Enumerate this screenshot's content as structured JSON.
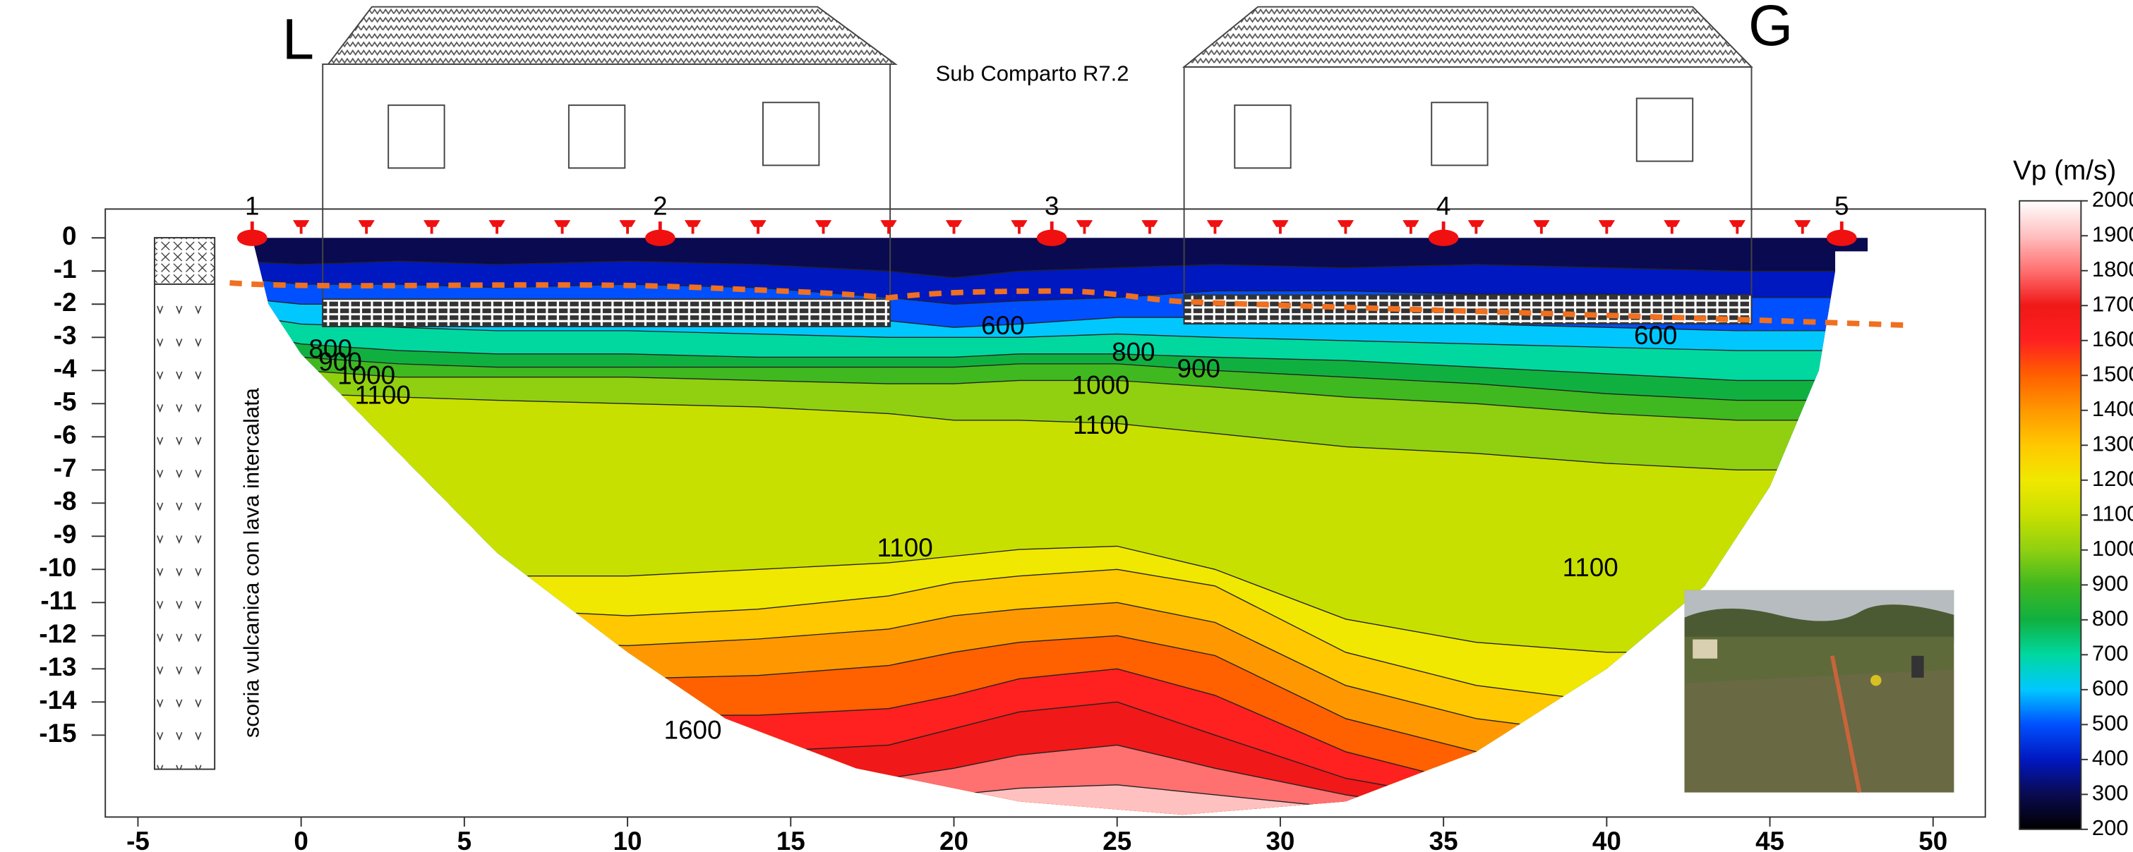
{
  "chart_data": {
    "type": "contour",
    "title": "Sub Comparto R7.2",
    "xlim": [
      -6,
      51.6
    ],
    "xticks": [
      -5,
      0,
      5,
      10,
      15,
      20,
      25,
      30,
      35,
      40,
      45,
      50
    ],
    "ylim": [
      -17.47,
      0.87
    ],
    "yticks": [
      0,
      -1,
      -2,
      -3,
      -4,
      -5,
      -6,
      -7,
      -8,
      -9,
      -10,
      -11,
      -12,
      -13,
      -14,
      -15
    ],
    "colorbar": {
      "label": "Vp (m/s)",
      "lim": [
        200,
        2000
      ],
      "ticks": [
        200,
        300,
        400,
        500,
        600,
        700,
        800,
        900,
        1000,
        1100,
        1200,
        1300,
        1400,
        1500,
        1600,
        1700,
        1800,
        1900,
        2000
      ],
      "colors": [
        "#000000",
        "#0a0a50",
        "#0018c0",
        "#0050ff",
        "#00c8ff",
        "#00d8a0",
        "#10b040",
        "#40b820",
        "#90d010",
        "#c8e000",
        "#f0e800",
        "#ffc800",
        "#ff9800",
        "#ff6000",
        "#ff2020",
        "#f01818",
        "#ff7070",
        "#ffc0c0",
        "#ffffff"
      ]
    },
    "contour_x": [
      -2,
      0,
      3,
      6,
      10,
      14,
      18,
      20,
      22,
      25,
      28,
      32,
      36,
      40,
      44,
      48
    ],
    "contours": [
      {
        "value": 400,
        "y": [
          -0.7,
          -0.8,
          -0.7,
          -0.8,
          -0.7,
          -0.8,
          -1,
          -1.2,
          -1,
          -0.9,
          -0.8,
          -0.9,
          -0.8,
          -0.9,
          -1,
          -1
        ]
      },
      {
        "value": 500,
        "y": [
          -1.2,
          -1.4,
          -1.4,
          -1.5,
          -1.4,
          -1.5,
          -1.8,
          -2,
          -1.9,
          -1.8,
          -1.6,
          -1.6,
          -1.7,
          -1.7,
          -1.8,
          -1.8
        ]
      },
      {
        "value": 600,
        "y": [
          -1.8,
          -2,
          -2,
          -2,
          -1.9,
          -2,
          -2.5,
          -2.7,
          -2.6,
          -2.4,
          -2.4,
          -2.5,
          -2.6,
          -2.7,
          -2.8,
          -2.8
        ]
      },
      {
        "value": 700,
        "y": [
          -2.3,
          -2.6,
          -2.7,
          -2.8,
          -2.8,
          -2.9,
          -3,
          -3,
          -3,
          -2.9,
          -3,
          -3.1,
          -3.2,
          -3.3,
          -3.4,
          -3.4
        ]
      },
      {
        "value": 800,
        "y": [
          -2.8,
          -3.2,
          -3.4,
          -3.5,
          -3.5,
          -3.6,
          -3.6,
          -3.6,
          -3.5,
          -3.5,
          -3.6,
          -3.7,
          -3.9,
          -4.1,
          -4.3,
          -4.3
        ]
      },
      {
        "value": 900,
        "y": [
          -3.2,
          -3.6,
          -3.8,
          -3.9,
          -3.9,
          -3.9,
          -3.9,
          -3.9,
          -3.8,
          -3.8,
          -4,
          -4.2,
          -4.4,
          -4.7,
          -4.9,
          -4.9
        ]
      },
      {
        "value": 1000,
        "y": [
          -3.6,
          -4,
          -4.2,
          -4.2,
          -4.2,
          -4.3,
          -4.4,
          -4.4,
          -4.3,
          -4.3,
          -4.5,
          -4.8,
          -5,
          -5.3,
          -5.5,
          -5.5
        ]
      },
      {
        "value": 1100,
        "y": [
          -4.2,
          -4.7,
          -4.8,
          -4.9,
          -5,
          -5.1,
          -5.3,
          -5.5,
          -5.5,
          -5.6,
          -5.9,
          -6.3,
          -6.5,
          -6.8,
          -7,
          -7
        ]
      },
      {
        "value": 1200,
        "y": [
          -9.5,
          -10,
          -10,
          -10.2,
          -10.2,
          -10,
          -9.8,
          -9.6,
          -9.4,
          -9.3,
          -10,
          -11.5,
          -12.2,
          -12.5,
          -12.5,
          -12.5
        ]
      },
      {
        "value": 1300,
        "y": [
          -10.5,
          -11,
          -11,
          -11.2,
          -11.4,
          -11.2,
          -10.8,
          -10.4,
          -10.2,
          -10,
          -10.5,
          -12.5,
          -13.5,
          -14,
          -14,
          -14
        ]
      },
      {
        "value": 1400,
        "y": [
          -11.5,
          -12,
          -12,
          -12.2,
          -12.3,
          -12.1,
          -11.8,
          -11.4,
          -11.2,
          -11,
          -11.6,
          -13.5,
          -14.5,
          -15,
          -15,
          -15
        ]
      },
      {
        "value": 1500,
        "y": [
          -12.5,
          -13,
          -13,
          -13.2,
          -13.3,
          -13.2,
          -12.9,
          -12.5,
          -12.2,
          -12,
          -12.6,
          -14.5,
          -15.5,
          -16,
          -16,
          -16
        ]
      },
      {
        "value": 1600,
        "y": [
          -13.5,
          -14,
          -14,
          -14.3,
          -14.4,
          -14.4,
          -14.2,
          -13.8,
          -13.3,
          -13,
          -13.8,
          -15.5,
          -16.5,
          -17,
          -17,
          -17
        ]
      },
      {
        "value": 1700,
        "y": [
          -15,
          -15.5,
          -15.5,
          -15.6,
          -15.6,
          -15.5,
          -15.3,
          -14.8,
          -14.3,
          -14,
          -15,
          -16.3,
          -17,
          -17.4,
          -17.4,
          -17.4
        ]
      },
      {
        "value": 1800,
        "y": [
          -16,
          -16.3,
          -16.5,
          -16.6,
          -16.6,
          -16.5,
          -16.3,
          -16,
          -15.6,
          -15.3,
          -16,
          -16.8,
          -17.4,
          -17.4,
          -17.4,
          -17.4
        ]
      },
      {
        "value": 1900,
        "y": [
          -17,
          -17,
          -17,
          -17.2,
          -17.2,
          -17.1,
          -17,
          -16.8,
          -16.6,
          -16.5,
          -16.8,
          -17.2,
          -17.4,
          -17.4,
          -17.4,
          -17.4
        ]
      }
    ],
    "contour_labels": [
      {
        "value": 600,
        "x": 21.5,
        "y": -2.7
      },
      {
        "value": 600,
        "x": 41.5,
        "y": -3
      },
      {
        "value": 800,
        "x": 0.9,
        "y": -3.4
      },
      {
        "value": 900,
        "x": 1.2,
        "y": -3.8
      },
      {
        "value": 1000,
        "x": 2,
        "y": -4.2
      },
      {
        "value": 1100,
        "x": 2.5,
        "y": -4.8
      },
      {
        "value": 800,
        "x": 25.5,
        "y": -3.5
      },
      {
        "value": 900,
        "x": 27.5,
        "y": -4
      },
      {
        "value": 1000,
        "x": 24.5,
        "y": -4.5
      },
      {
        "value": 1100,
        "x": 24.5,
        "y": -5.7
      },
      {
        "value": 1100,
        "x": 18.5,
        "y": -9.4
      },
      {
        "value": 1100,
        "x": 39.5,
        "y": -10
      },
      {
        "value": 1600,
        "x": 12,
        "y": -14.9
      }
    ],
    "shots": {
      "labels": [
        "1",
        "2",
        "3",
        "4",
        "5"
      ],
      "x": [
        -1.5,
        11,
        23,
        35,
        47.2
      ]
    },
    "geophones_x": [
      0,
      2,
      4,
      6,
      8,
      10,
      12,
      14,
      16,
      18,
      20,
      22,
      24,
      26,
      28,
      30,
      32,
      34,
      36,
      38,
      40,
      42,
      44,
      46
    ],
    "annotations": {
      "left": "L",
      "right": "G",
      "column": "scoria vulcanica con lava intercalata"
    }
  }
}
